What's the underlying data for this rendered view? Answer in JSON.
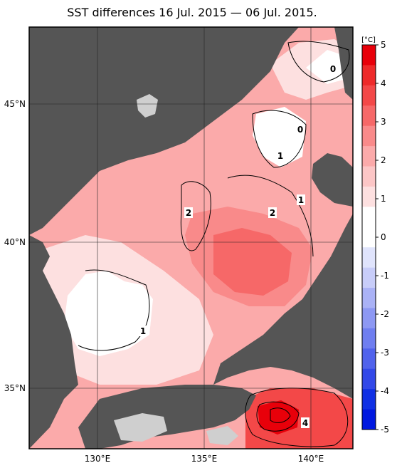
{
  "title": "SST differences 16 Jul. 2015 — 06 Jul. 2015.",
  "colorbar": {
    "unit": "[°C]",
    "ticks": [
      "5",
      "4",
      "3",
      "2",
      "1",
      "0",
      "-1",
      "-2",
      "-3",
      "-4",
      "-5"
    ],
    "colors": [
      "#e8000a",
      "#ee2a2a",
      "#f34848",
      "#f66868",
      "#f98a8a",
      "#fbaaaa",
      "#fcc6c6",
      "#fde0e0",
      "#ffffff",
      "#ffffff",
      "#e0e4fc",
      "#c8cdf9",
      "#aab2f6",
      "#8d98f3",
      "#6f7ef0",
      "#5062ec",
      "#3248e8",
      "#1030e4",
      "#0018e0"
    ]
  },
  "axes": {
    "x_ticks": [
      "130°E",
      "135°E",
      "140°E"
    ],
    "y_ticks": [
      "45°N",
      "40°N",
      "35°N"
    ]
  },
  "contour_labels": [
    "0",
    "0",
    "1",
    "1",
    "2",
    "2",
    "1",
    "4"
  ],
  "colors": {
    "land": "#555555",
    "nodata": "#cfcfcf",
    "sea_light": "#fde0e0",
    "sea_mid": "#fbaaaa",
    "sea_high": "#f98a8a",
    "sea_hot": "#f34848",
    "sea_max": "#e8000a",
    "white": "#ffffff"
  }
}
